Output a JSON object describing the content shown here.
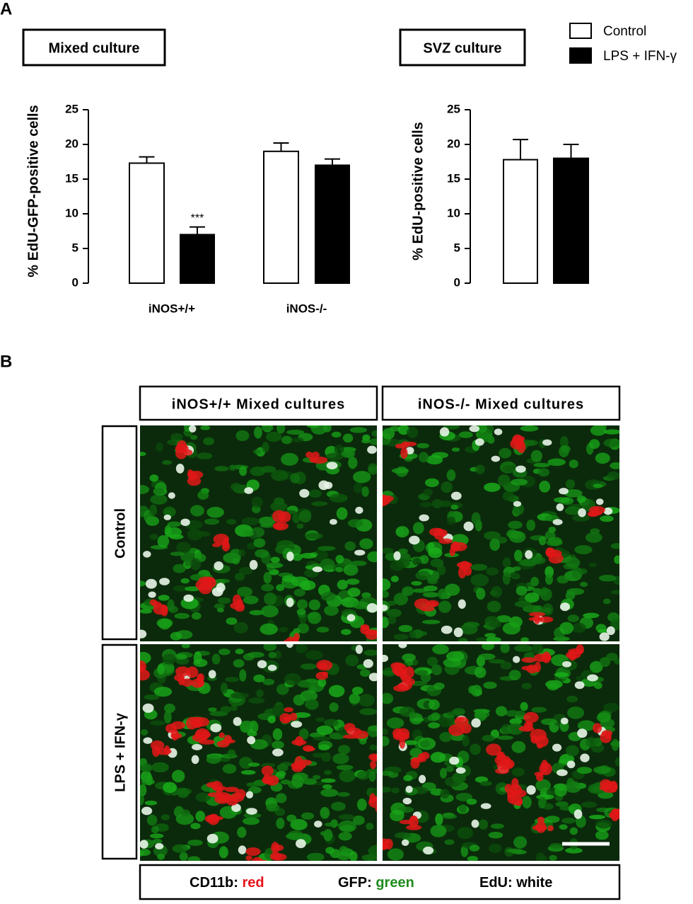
{
  "panel_a_label": "A",
  "panel_b_label": "B",
  "chart_data": [
    {
      "type": "bar",
      "title": "Mixed culture",
      "y_label": "% EdU-GFP-positive cells",
      "categories": [
        "iNOS+/+",
        "iNOS-/-"
      ],
      "series": [
        {
          "name": "Control",
          "color": "#ffffff",
          "values": [
            17.3,
            19
          ],
          "errors": [
            0.9,
            1.2
          ]
        },
        {
          "name": "LPS + IFN-γ",
          "color": "#000000",
          "values": [
            7,
            17
          ],
          "errors": [
            1.1,
            0.9
          ]
        }
      ],
      "annotation": "***",
      "ylim": [
        0,
        25
      ],
      "yticks": [
        0,
        5,
        10,
        15,
        20,
        25
      ]
    },
    {
      "type": "bar",
      "title": "SVZ culture",
      "y_label": "% EdU-positive cells",
      "categories": [
        null
      ],
      "series": [
        {
          "color": "#ffffff",
          "values": [
            17.8
          ],
          "errors": [
            2.9
          ]
        },
        {
          "color": "#000000",
          "values": [
            18
          ],
          "errors": [
            2
          ]
        }
      ],
      "ylim": [
        0,
        25
      ],
      "yticks": [
        0,
        5,
        10,
        15,
        20,
        25
      ]
    }
  ],
  "micrographs": {
    "columns": [
      "iNOS+/+ Mixed cultures",
      "iNOS-/- Mixed cultures"
    ],
    "rows": [
      "Control",
      "LPS + IFN-γ"
    ],
    "stain_legend": [
      {
        "label": "CD11b:",
        "color_word": "red",
        "color": "#e8141b"
      },
      {
        "label": "GFP:",
        "color_word": "green",
        "color": "#1e8c1e"
      },
      {
        "label": "EdU:",
        "color_word": "white",
        "color": "#000000"
      }
    ]
  }
}
